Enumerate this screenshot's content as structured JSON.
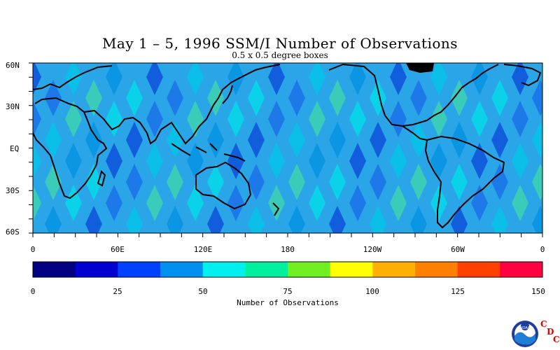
{
  "title": "May 1 – 5, 1996 SSM/I Number of Observations",
  "subtitle": "0.5 x 0.5 degree boxes",
  "lat_labels": [
    "60N",
    "30N",
    "EQ",
    "30S",
    "60S"
  ],
  "lon_labels": [
    "0",
    "60E",
    "120E",
    "180",
    "120W",
    "60W",
    "0"
  ],
  "colorbar": {
    "label": "Number of Observations",
    "tick_labels": [
      "0",
      "25",
      "50",
      "75",
      "100",
      "125",
      "150"
    ],
    "colors": [
      "#000080",
      "#0000d0",
      "#0040ff",
      "#0090f0",
      "#00f0f0",
      "#00f0a0",
      "#70f020",
      "#ffff00",
      "#ffb000",
      "#ff8000",
      "#ff4000",
      "#ff0040"
    ]
  },
  "logo": {
    "noaa": "NOAA",
    "letters": [
      "C",
      "D",
      "C"
    ]
  }
}
